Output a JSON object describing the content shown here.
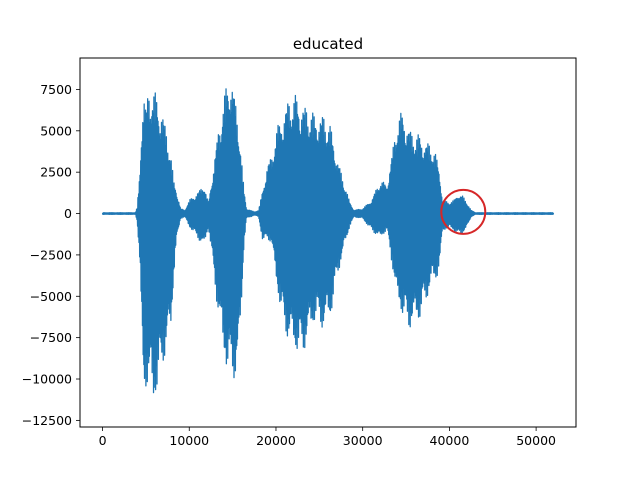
{
  "chart_data": {
    "type": "line",
    "title": "educated",
    "xlabel": "",
    "ylabel": "",
    "xlim": [
      -2600,
      54600
    ],
    "ylim": [
      -12900,
      9400
    ],
    "x_ticks": [
      0,
      10000,
      20000,
      30000,
      40000,
      50000
    ],
    "x_tick_labels": [
      "0",
      "10000",
      "20000",
      "30000",
      "40000",
      "50000"
    ],
    "y_ticks": [
      7500,
      5000,
      2500,
      0,
      -2500,
      -5000,
      -7500,
      -10000,
      -12500
    ],
    "y_tick_labels": [
      "7500",
      "5000",
      "2500",
      "0",
      "−2500",
      "−5000",
      "−7500",
      "−10000",
      "−12500"
    ],
    "grid": false,
    "series": [
      {
        "color": "#1f77b4",
        "x_range": [
          0,
          52000
        ],
        "envelope": [
          [
            0,
            50,
            -50
          ],
          [
            3800,
            50,
            -50
          ],
          [
            4000,
            400,
            -500
          ],
          [
            4300,
            2500,
            -3000
          ],
          [
            4500,
            5500,
            -7000
          ],
          [
            4700,
            7800,
            -11500
          ],
          [
            5000,
            6500,
            -10500
          ],
          [
            5300,
            7700,
            -10300
          ],
          [
            5800,
            7500,
            -11800
          ],
          [
            6200,
            7200,
            -11200
          ],
          [
            6600,
            6500,
            -10200
          ],
          [
            7000,
            6000,
            -9000
          ],
          [
            7500,
            4800,
            -8000
          ],
          [
            7900,
            3500,
            -7000
          ],
          [
            8200,
            2000,
            -4000
          ],
          [
            8500,
            1500,
            -1800
          ],
          [
            9000,
            300,
            -300
          ],
          [
            9500,
            200,
            -200
          ],
          [
            10000,
            800,
            -800
          ],
          [
            11000,
            1300,
            -1500
          ],
          [
            11700,
            1800,
            -2000
          ],
          [
            12200,
            600,
            -800
          ],
          [
            12700,
            2500,
            -3000
          ],
          [
            13200,
            4500,
            -5500
          ],
          [
            13800,
            6500,
            -8000
          ],
          [
            14300,
            7800,
            -9500
          ],
          [
            14800,
            8600,
            -9800
          ],
          [
            15300,
            7000,
            -10000
          ],
          [
            15700,
            5500,
            -9000
          ],
          [
            16000,
            3500,
            -6000
          ],
          [
            16300,
            1500,
            -2000
          ],
          [
            16600,
            300,
            -300
          ],
          [
            17500,
            100,
            -100
          ],
          [
            18000,
            200,
            -200
          ],
          [
            18500,
            1500,
            -1800
          ],
          [
            19000,
            3000,
            -1500
          ],
          [
            19500,
            3500,
            -1800
          ],
          [
            20000,
            5000,
            -4000
          ],
          [
            20700,
            6000,
            -6500
          ],
          [
            21500,
            7000,
            -7800
          ],
          [
            22200,
            7200,
            -8300
          ],
          [
            22800,
            6800,
            -8700
          ],
          [
            23500,
            6500,
            -8000
          ],
          [
            24500,
            6000,
            -6500
          ],
          [
            25500,
            6000,
            -7000
          ],
          [
            26300,
            5300,
            -6300
          ],
          [
            27000,
            3500,
            -4000
          ],
          [
            27800,
            2000,
            -2200
          ],
          [
            28500,
            700,
            -800
          ],
          [
            29000,
            200,
            -200
          ],
          [
            30000,
            300,
            -300
          ],
          [
            31000,
            800,
            -1000
          ],
          [
            32000,
            2000,
            -1500
          ],
          [
            32800,
            1800,
            -1000
          ],
          [
            33500,
            4000,
            -3500
          ],
          [
            34000,
            5800,
            -5500
          ],
          [
            34500,
            6200,
            -6000
          ],
          [
            35000,
            5800,
            -6800
          ],
          [
            35500,
            5000,
            -7000
          ],
          [
            36500,
            4800,
            -6500
          ],
          [
            37500,
            4300,
            -5000
          ],
          [
            38000,
            4200,
            -4300
          ],
          [
            38500,
            3500,
            -4000
          ],
          [
            38900,
            2500,
            -3200
          ],
          [
            39200,
            800,
            -1000
          ],
          [
            40000,
            700,
            -900
          ],
          [
            40500,
            800,
            -1000
          ],
          [
            41000,
            1200,
            -1300
          ],
          [
            41500,
            1100,
            -1200
          ],
          [
            42000,
            700,
            -900
          ],
          [
            42500,
            200,
            -200
          ],
          [
            43000,
            50,
            -50
          ],
          [
            52000,
            50,
            -50
          ]
        ]
      }
    ],
    "annotations": [
      {
        "shape": "circle",
        "color": "#d62728",
        "center": [
          41600,
          100
        ]
      }
    ]
  }
}
